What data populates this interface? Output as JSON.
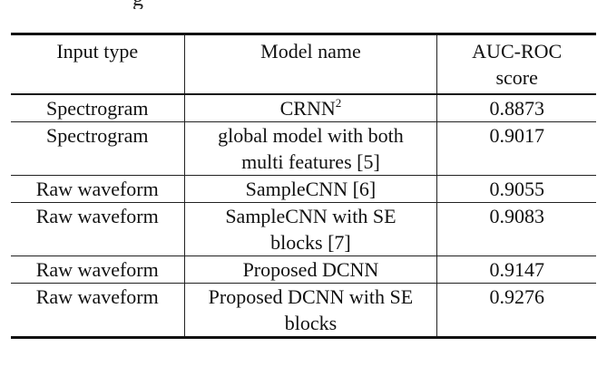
{
  "top_fragment": "g",
  "table": {
    "headers": {
      "input_type": "Input type",
      "model_name": "Model name",
      "score_line1": "AUC-ROC",
      "score_line2": "score"
    },
    "rows": [
      {
        "input": "Spectrogram",
        "model_line1": "CRNN",
        "model_sup": "2",
        "model_line2": "",
        "score": "0.8873"
      },
      {
        "input": "Spectrogram",
        "model_line1": "global model with both",
        "model_sup": "",
        "model_line2": "multi features [5]",
        "score": "0.9017"
      },
      {
        "input": "Raw waveform",
        "model_line1": "SampleCNN [6]",
        "model_sup": "",
        "model_line2": "",
        "score": "0.9055"
      },
      {
        "input": "Raw waveform",
        "model_line1": "SampleCNN with SE",
        "model_sup": "",
        "model_line2": "blocks [7]",
        "score": "0.9083"
      },
      {
        "input": "Raw waveform",
        "model_line1": "Proposed DCNN",
        "model_sup": "",
        "model_line2": "",
        "score": "0.9147"
      },
      {
        "input": "Raw waveform",
        "model_line1": "Proposed DCNN with SE",
        "model_sup": "",
        "model_line2": "blocks",
        "score": "0.9276",
        "highlight": true
      }
    ]
  }
}
